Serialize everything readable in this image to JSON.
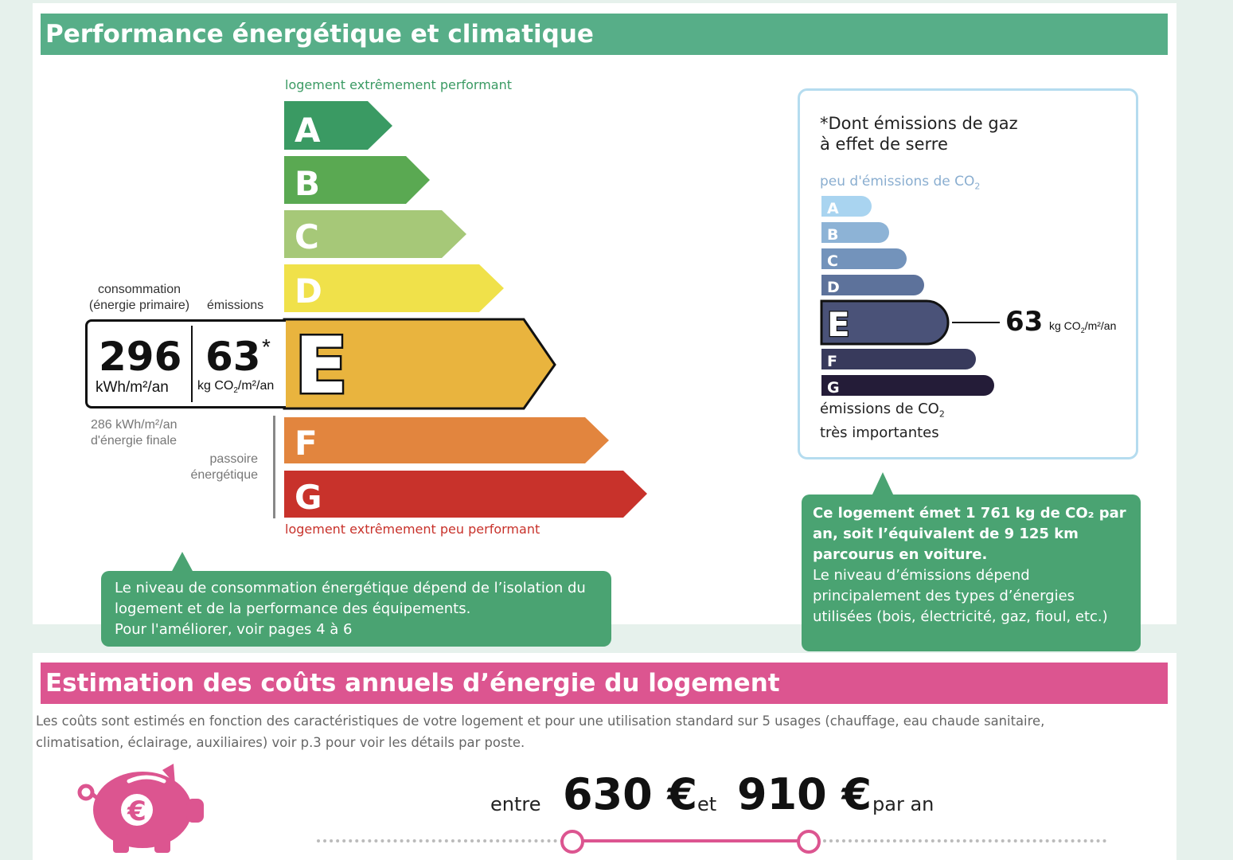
{
  "energy_section": {
    "title": "Performance énergétique et climatique",
    "top_label": "logement extrêmement performant",
    "bottom_label": "logement extrêmement peu performant",
    "grades": [
      {
        "letter": "A",
        "color": "#3a9a63"
      },
      {
        "letter": "B",
        "color": "#5aa952"
      },
      {
        "letter": "C",
        "color": "#a6c878"
      },
      {
        "letter": "D",
        "color": "#f0e14a"
      },
      {
        "letter": "E",
        "color": "#e9b43e"
      },
      {
        "letter": "F",
        "color": "#e2853e"
      },
      {
        "letter": "G",
        "color": "#c8322b"
      }
    ],
    "current_grade": "E",
    "consumption_label_line1": "consommation",
    "consumption_label_line2": "(énergie primaire)",
    "emissions_label": "émissions",
    "consumption_value": "296",
    "consumption_unit": "kWh/m²/an",
    "emissions_value": "63",
    "emissions_star": "*",
    "emissions_unit_pre": "kg CO",
    "emissions_unit_sub": "2",
    "emissions_unit_post": "/m²/an",
    "final_energy_line1": "286 kWh/m²/an",
    "final_energy_line2": "d'énergie finale",
    "passoire_line1": "passoire",
    "passoire_line2": "énergétique",
    "bubble_line1": "Le niveau de consommation énergétique dépend de l’isolation du",
    "bubble_line2": "logement et de la performance des équipements.",
    "bubble_line3": "Pour l'améliorer, voir pages 4 à 6"
  },
  "ghg_box": {
    "heading_star": "*",
    "heading_line1": "Dont émissions de gaz",
    "heading_line2": "à effet de serre",
    "top_label_pre": "peu d'émissions de CO",
    "top_label_sub": "2",
    "bottom_label_line1_pre": "émissions de CO",
    "bottom_label_line1_sub": "2",
    "bottom_label_line2": "très importantes",
    "grades": [
      {
        "letter": "A",
        "color": "#a9d4f0"
      },
      {
        "letter": "B",
        "color": "#8db3d6"
      },
      {
        "letter": "C",
        "color": "#7393bb"
      },
      {
        "letter": "D",
        "color": "#5d729b"
      },
      {
        "letter": "E",
        "color": "#4a5278"
      },
      {
        "letter": "F",
        "color": "#383a5c"
      },
      {
        "letter": "G",
        "color": "#241c38"
      }
    ],
    "current_grade": "E",
    "value": "63",
    "unit_pre": "kg CO",
    "unit_sub": "2",
    "unit_post": "/m²/an",
    "bubble_bold_line1": "Ce logement émet 1 761 kg de CO₂ par",
    "bubble_bold_line2": "an, soit l’équivalent de 9 125 km",
    "bubble_bold_line3": "parcourus en voiture.",
    "bubble_line1": "Le niveau d’émissions dépend",
    "bubble_line2": "principalement des types d’énergies",
    "bubble_line3": "utilisées (bois, électricité, gaz, fioul, etc.)"
  },
  "cost_section": {
    "title": "Estimation des coûts annuels d’énergie du logement",
    "description_line1": "Les coûts sont estimés en fonction des caractéristiques de votre logement et pour une utilisation standard sur 5 usages (chauffage, eau chaude sanitaire,",
    "description_line2": "climatisation, éclairage, auxiliaires) voir p.3 pour voir les détails par poste.",
    "between": "entre",
    "min_cost": "630 €",
    "and": "et",
    "max_cost": "910 €",
    "per_year": "par an",
    "piggy_symbol": "€"
  },
  "colors": {
    "green_title": "#57ae88",
    "pink_title": "#dc5590",
    "bubble_green": "#4aa372",
    "box_border": "#b5dcef"
  }
}
